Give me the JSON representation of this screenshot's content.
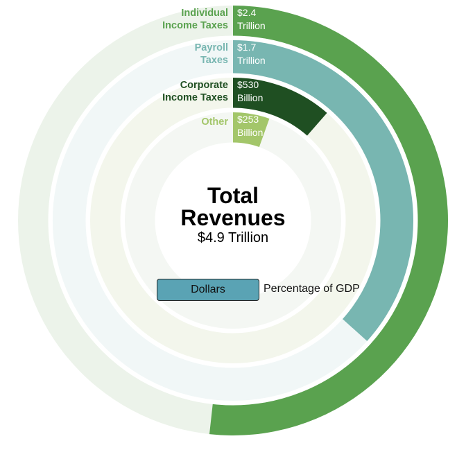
{
  "chart_data": {
    "type": "radial_bar",
    "title": "Total Revenues",
    "total": "$4.9 Trillion",
    "series": [
      {
        "name": "Individual Income Taxes",
        "name_lines": [
          "Individual",
          "Income Taxes"
        ],
        "value": 2.4,
        "unit": "trillion",
        "label_lines": [
          "$2.4",
          "Trillion"
        ],
        "color": "#5aa24f",
        "track": "#ecf3ea",
        "label_color": "#5aa24f"
      },
      {
        "name": "Payroll Taxes",
        "name_lines": [
          "Payroll",
          "Taxes"
        ],
        "value": 1.7,
        "unit": "trillion",
        "label_lines": [
          "$1.7",
          "Trillion"
        ],
        "color": "#78b6b1",
        "track": "#f1f7f7",
        "label_color": "#78b6b1"
      },
      {
        "name": "Corporate Income Taxes",
        "name_lines": [
          "Corporate",
          "Income Taxes"
        ],
        "value": 0.53,
        "unit": "trillion",
        "label_lines": [
          "$530",
          "Billion"
        ],
        "color": "#1f4f22",
        "track": "#f3f6ec",
        "label_color": "#1f4f22"
      },
      {
        "name": "Other",
        "name_lines": [
          "Other"
        ],
        "value": 0.253,
        "unit": "trillion",
        "label_lines": [
          "$253",
          "Billion"
        ],
        "color": "#a3c66a",
        "track": "#f4f7f3",
        "label_color": "#a3c66a"
      }
    ]
  },
  "toggle": {
    "dollars_label": "Dollars",
    "gdp_label": "Percentage of GDP",
    "active": "Dollars",
    "active_color": "#5aa3b4"
  }
}
